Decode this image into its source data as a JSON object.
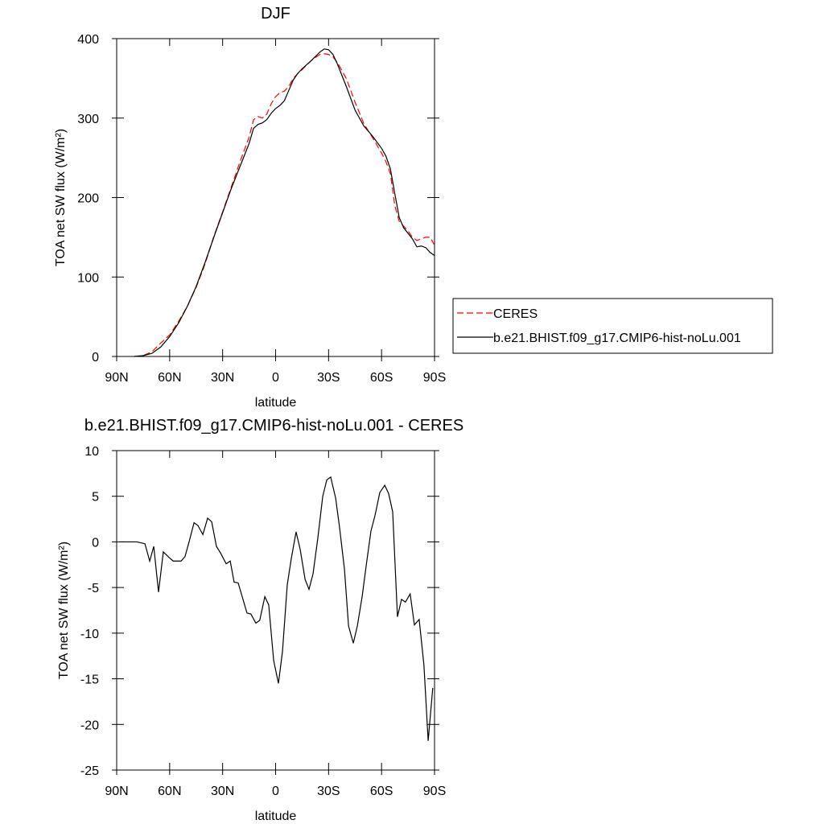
{
  "chart_data": [
    {
      "type": "line",
      "title": "DJF",
      "xlabel": "latitude",
      "ylabel": "TOA net SW flux (W/m²)",
      "xlim": [
        90,
        -90
      ],
      "ylim": [
        0,
        400
      ],
      "xticks": [
        {
          "value": 90,
          "label": "90N"
        },
        {
          "value": 60,
          "label": "60N"
        },
        {
          "value": 30,
          "label": "30N"
        },
        0,
        {
          "value": -30,
          "label": "30S"
        },
        {
          "value": -60,
          "label": "60S"
        },
        {
          "value": -90,
          "label": "90S"
        }
      ],
      "yticks": [
        0,
        100,
        200,
        300,
        400
      ],
      "legend": "right",
      "x": [
        80,
        75,
        70,
        65,
        60,
        55,
        50,
        45,
        40,
        35,
        30,
        25,
        20,
        15,
        12.5,
        10,
        7.5,
        5,
        2.5,
        0,
        -2.5,
        -5,
        -7.5,
        -10,
        -12.5,
        -15,
        -20,
        -25,
        -27.5,
        -30,
        -32.5,
        -35,
        -40,
        -45,
        -50,
        -55,
        -60,
        -62.5,
        -65,
        -67.5,
        -70,
        -72.5,
        -75,
        -77.5,
        -80,
        -82.5,
        -85,
        -87.5,
        -90
      ],
      "series": [
        {
          "name": "CERES",
          "color": "#ff0000",
          "dashed": true,
          "values": [
            0,
            1,
            6,
            17,
            27,
            44,
            63,
            87,
            116,
            151,
            182,
            214,
            246,
            276,
            298,
            302,
            300,
            305,
            318,
            327,
            332,
            334,
            340,
            350,
            356,
            361,
            372,
            380,
            381,
            380,
            377,
            370,
            350,
            320,
            293,
            275,
            256,
            245,
            230,
            190,
            170,
            164,
            158,
            150,
            146,
            148,
            150,
            150,
            140
          ]
        },
        {
          "name": "b.e21.BHIST.f09_g17.CMIP6-hist-noLu.001",
          "color": "#000000",
          "dashed": false,
          "values": [
            0,
            1,
            4,
            12,
            25,
            42,
            63,
            88,
            118,
            150,
            181,
            212,
            240,
            268,
            287,
            292,
            294,
            298,
            306,
            312,
            316,
            322,
            335,
            348,
            356,
            362,
            372,
            383,
            387,
            386,
            380,
            368,
            340,
            310,
            290,
            277,
            262,
            252,
            236,
            205,
            175,
            162,
            155,
            148,
            138,
            139,
            137,
            131,
            127
          ]
        }
      ]
    },
    {
      "type": "line",
      "title": "b.e21.BHIST.f09_g17.CMIP6-hist-noLu.001 - CERES",
      "xlabel": "latitude",
      "ylabel": "TOA net SW flux (W/m²)",
      "xlim": [
        90,
        -90
      ],
      "ylim": [
        -25,
        10
      ],
      "xticks": [
        {
          "value": 90,
          "label": "90N"
        },
        {
          "value": 60,
          "label": "60N"
        },
        {
          "value": 30,
          "label": "30N"
        },
        0,
        {
          "value": -30,
          "label": "30S"
        },
        {
          "value": -60,
          "label": "60S"
        },
        {
          "value": -90,
          "label": "90S"
        }
      ],
      "yticks": [
        10,
        5,
        0,
        -5,
        -10,
        -15,
        -20,
        -25
      ],
      "x": [
        88.6,
        78.6,
        74,
        71.3,
        69,
        66.3,
        63.6,
        60.4,
        58,
        53.5,
        51.3,
        49,
        46.2,
        44,
        41.2,
        38.5,
        36.2,
        33.5,
        31.2,
        28,
        25.7,
        23.5,
        21.2,
        16.2,
        14,
        11.2,
        9,
        6.1,
        3.9,
        1.1,
        -1.6,
        -3.9,
        -6.6,
        -8.9,
        -11.6,
        -13.9,
        -16.7,
        -18.9,
        -21.2,
        -23.9,
        -26.7,
        -29,
        -31.2,
        -34,
        -36.2,
        -39,
        -41.3,
        -44,
        -46.3,
        -49,
        -51.3,
        -54,
        -56.3,
        -59,
        -61.8,
        -64,
        -66.3,
        -69,
        -71.3,
        -73.5,
        -76.2,
        -78.6,
        -81.3,
        -84,
        -86.4,
        -89
      ],
      "series": [
        {
          "name": null,
          "color": "#000000",
          "dashed": false,
          "values": [
            0,
            0,
            -0.2,
            -2.1,
            -0.5,
            -5.5,
            -1.1,
            -1.7,
            -2.1,
            -2.1,
            -1.6,
            0,
            2.1,
            1.8,
            0.8,
            2.6,
            2.2,
            -0.5,
            -1.2,
            -2.4,
            -2.1,
            -4.4,
            -4.5,
            -7.8,
            -7.9,
            -8.9,
            -8.6,
            -6,
            -6.9,
            -13,
            -15.5,
            -12,
            -4.7,
            -1.8,
            1.1,
            -0.8,
            -4.1,
            -5.2,
            -3.5,
            0.4,
            5,
            6.8,
            7.1,
            4.8,
            1.6,
            -3,
            -9.2,
            -11.1,
            -9.2,
            -6,
            -2.6,
            1.2,
            2.9,
            5.4,
            6.2,
            5.3,
            3.3,
            -8.2,
            -6.3,
            -6.6,
            -5.7,
            -9.1,
            -8.5,
            -13.5,
            -21.8,
            -16
          ]
        }
      ]
    }
  ]
}
